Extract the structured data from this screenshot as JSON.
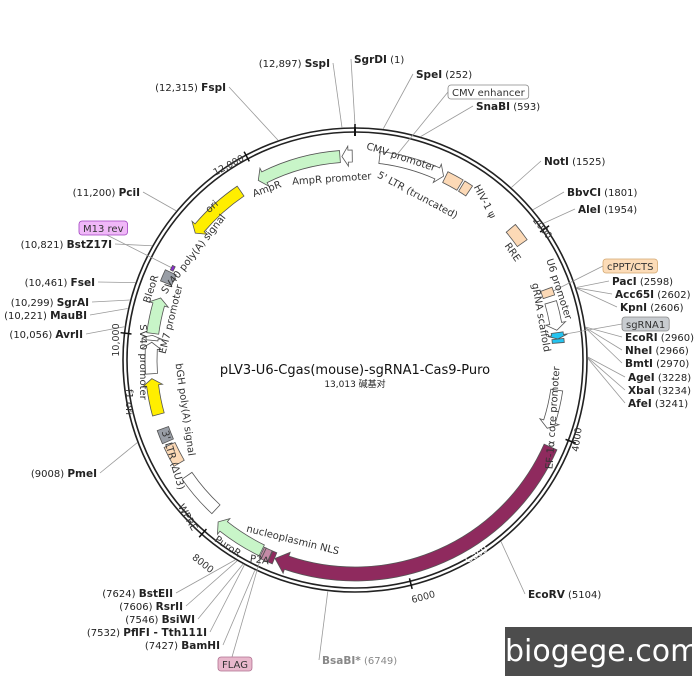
{
  "plasmid": {
    "name": "pLV3-U6-Cgas(mouse)-sgRNA1-Cas9-Puro",
    "length_label": "13,013 碱基对",
    "length_bp": 13013
  },
  "ticks": [
    "2000",
    "4000",
    "6000",
    "8000",
    "10,000",
    "12,000"
  ],
  "features": [
    {
      "label": "AmpR promoter",
      "start": 12880,
      "end": 12985,
      "dir": -1,
      "color": "#ffffff"
    },
    {
      "label": "AmpR",
      "start": 11990,
      "end": 12860,
      "dir": -1,
      "color": "#c8f5c8"
    },
    {
      "label": "ori",
      "start": 11150,
      "end": 11780,
      "dir": -1,
      "color": "#ffee00"
    },
    {
      "label": "CMV promoter",
      "start": 250,
      "end": 930,
      "dir": 1,
      "color": "#ffffff"
    },
    {
      "label": "5' LTR (truncated)",
      "start": 950,
      "end": 1120,
      "dir": 0,
      "color": "#fcd9b6"
    },
    {
      "label": "HIV-1 ψ",
      "start": 1140,
      "end": 1230,
      "dir": 0,
      "color": "#fcd9b6"
    },
    {
      "label": "RRE",
      "start": 1800,
      "end": 1990,
      "dir": 0,
      "color": "#fcd9b6"
    },
    {
      "label": "cPPT/CTS",
      "start": 2520,
      "end": 2600,
      "dir": 0,
      "color": "#fcd9b6"
    },
    {
      "label": "U6 promoter",
      "start": 2660,
      "end": 2950,
      "dir": 1,
      "color": "#ffffff"
    },
    {
      "label": "sgRNA1",
      "start": 2975,
      "end": 3040,
      "dir": 1,
      "color": "#24c4f0"
    },
    {
      "label": "gRNA scaffold",
      "start": 3040,
      "end": 3080,
      "dir": 0,
      "color": "#24c4f0"
    },
    {
      "label": "EF-1α core promoter",
      "start": 3560,
      "end": 3960,
      "dir": 1,
      "color": "#ffffff"
    },
    {
      "label": "Cas9",
      "start": 4120,
      "end": 7300,
      "dir": 1,
      "color": "#8f2a5e"
    },
    {
      "label": "nucleoplasmin NLS",
      "start": 7305,
      "end": 7350,
      "dir": 0,
      "color": "#8f2a5e"
    },
    {
      "label": "P2A",
      "start": 7355,
      "end": 7420,
      "dir": 0,
      "color": "#c48aa6"
    },
    {
      "label": "FLAG",
      "start": 7420,
      "end": 7440,
      "dir": 0,
      "color": "#c48aa6"
    },
    {
      "label": "PuroR",
      "start": 7450,
      "end": 7960,
      "dir": 1,
      "color": "#c8f5c8"
    },
    {
      "label": "WPRE",
      "start": 8060,
      "end": 8510,
      "dir": 0,
      "color": "#ffffff"
    },
    {
      "label": "3' LTR (ΔU3)",
      "start": 8660,
      "end": 8870,
      "dir": 0,
      "color": "#fcd9b6"
    },
    {
      "label": "bGH poly(A) signal",
      "start": 8910,
      "end": 9050,
      "dir": 0,
      "color": "#999ea6"
    },
    {
      "label": "f1 ori",
      "start": 9200,
      "end": 9570,
      "dir": 1,
      "color": "#ffee00"
    },
    {
      "label": "SV40 promoter",
      "start": 9620,
      "end": 9940,
      "dir": 1,
      "color": "#ffffff"
    },
    {
      "label": "EM7 promoter",
      "start": 9960,
      "end": 10010,
      "dir": 1,
      "color": "#ffffff"
    },
    {
      "label": "BleoR",
      "start": 10030,
      "end": 10400,
      "dir": 1,
      "color": "#c8f5c8"
    },
    {
      "label": "SV40 poly(A) signal",
      "start": 10560,
      "end": 10680,
      "dir": 0,
      "color": "#999ea6"
    },
    {
      "label": "M13 rev",
      "start": 10700,
      "end": 10750,
      "dir": 0,
      "color": "#8a2ccf"
    }
  ],
  "sites": [
    {
      "name": "SspI",
      "pos": 12897,
      "pos_label": "(12,897)"
    },
    {
      "name": "SgrDI",
      "pos": 1,
      "pos_label": "(1)"
    },
    {
      "name": "SpeI",
      "pos": 252,
      "pos_label": "(252)"
    },
    {
      "name": "SnaBI",
      "pos": 593,
      "pos_label": "(593)"
    },
    {
      "name": "NotI",
      "pos": 1525,
      "pos_label": "(1525)"
    },
    {
      "name": "BbvCI",
      "pos": 1801,
      "pos_label": "(1801)"
    },
    {
      "name": "AleI",
      "pos": 1954,
      "pos_label": "(1954)"
    },
    {
      "name": "PacI",
      "pos": 2598,
      "pos_label": "(2598)"
    },
    {
      "name": "Acc65I",
      "pos": 2602,
      "pos_label": "(2602)"
    },
    {
      "name": "KpnI",
      "pos": 2606,
      "pos_label": "(2606)"
    },
    {
      "name": "EcoRI",
      "pos": 2960,
      "pos_label": "(2960)"
    },
    {
      "name": "NheI",
      "pos": 2966,
      "pos_label": "(2966)"
    },
    {
      "name": "BmtI",
      "pos": 2970,
      "pos_label": "(2970)"
    },
    {
      "name": "AgeI",
      "pos": 3228,
      "pos_label": "(3228)"
    },
    {
      "name": "XbaI",
      "pos": 3234,
      "pos_label": "(3234)"
    },
    {
      "name": "AfeI",
      "pos": 3241,
      "pos_label": "(3241)"
    },
    {
      "name": "EcoRV",
      "pos": 5104,
      "pos_label": "(5104)"
    },
    {
      "name": "BsaBI*",
      "pos": 6749,
      "pos_label": "(6749)"
    },
    {
      "name": "BamHI",
      "pos": 7427,
      "pos_label": "(7427)"
    },
    {
      "name": "PflFI - Tth111I",
      "pos": 7532,
      "pos_label": "(7532)"
    },
    {
      "name": "BsiWI",
      "pos": 7546,
      "pos_label": "(7546)"
    },
    {
      "name": "RsrII",
      "pos": 7606,
      "pos_label": "(7606)"
    },
    {
      "name": "BstEII",
      "pos": 7624,
      "pos_label": "(7624)"
    },
    {
      "name": "PmeI",
      "pos": 9008,
      "pos_label": "(9008)"
    },
    {
      "name": "AvrII",
      "pos": 10056,
      "pos_label": "(10,056)"
    },
    {
      "name": "MauBI",
      "pos": 10221,
      "pos_label": "(10,221)"
    },
    {
      "name": "SgrAI",
      "pos": 10299,
      "pos_label": "(10,299)"
    },
    {
      "name": "FseI",
      "pos": 10461,
      "pos_label": "(10,461)"
    },
    {
      "name": "BstZ17I",
      "pos": 10821,
      "pos_label": "(10,821)"
    },
    {
      "name": "PciI",
      "pos": 11200,
      "pos_label": "(11,200)"
    },
    {
      "name": "FspI",
      "pos": 12315,
      "pos_label": "(12,315)"
    }
  ],
  "boxed_labels": [
    {
      "label": "CMV enhancer",
      "pos": 420,
      "color": "#ffffff",
      "border": "#888888"
    },
    {
      "label": "cPPT/CTS",
      "pos": 2560,
      "color": "#fcdcb8",
      "border": "#d4a870"
    },
    {
      "label": "sgRNA1",
      "pos": 3000,
      "color": "#c8ccd0",
      "border": "#888888"
    },
    {
      "label": "M13 rev",
      "pos": 10725,
      "color": "#f0b8f8",
      "border": "#a040c0"
    },
    {
      "label": "FLAG",
      "pos": 7430,
      "color": "#e8b8cc",
      "border": "#b07090"
    }
  ],
  "watermark": "biogege.com"
}
